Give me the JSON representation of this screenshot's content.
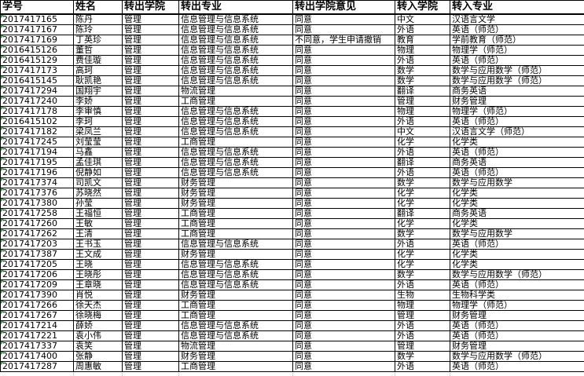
{
  "colors": {
    "transfer_out_header_bg": "#FFD34F",
    "transfer_in_header_bg": "#A5C2E7",
    "grid_border": "#000000",
    "cell_error_indicator_green": "#2E9E41",
    "ghost_gridline": "#d4d4d4"
  },
  "table": {
    "columns": [
      {
        "key": "student-id",
        "label": "学号",
        "group": "plain",
        "width": 93
      },
      {
        "key": "name",
        "label": "姓名",
        "group": "plain",
        "width": 62
      },
      {
        "key": "out-college",
        "label": "转出学院",
        "group": "out",
        "width": 72
      },
      {
        "key": "out-major",
        "label": "转出专业",
        "group": "out",
        "width": 145
      },
      {
        "key": "out-opinion",
        "label": "转出学院意见",
        "group": "out",
        "width": 130
      },
      {
        "key": "in-college",
        "label": "转入学院",
        "group": "in",
        "width": 70
      },
      {
        "key": "in-major",
        "label": "转入专业",
        "group": "in",
        "width": 171
      }
    ],
    "rows": [
      [
        "2017417165",
        "陈丹",
        "管理",
        "信息管理与信息系统",
        "同意",
        "中文",
        "汉语言文学"
      ],
      [
        "2017417167",
        "陈玲",
        "管理",
        "信息管理与信息系统",
        "同意",
        "外语",
        "英语（师范）"
      ],
      [
        "2017417169",
        "丁英珍",
        "管理",
        "信息管理与信息系统",
        "不同意，学生申请撤销",
        "教育",
        "学前教育（师范）"
      ],
      [
        "2016415126",
        "董哲",
        "管理",
        "信息管理与信息系统",
        "同意",
        "物理",
        "物理学（师范）"
      ],
      [
        "2016415129",
        "费佳璇",
        "管理",
        "信息管理与信息系统",
        "同意",
        "外语",
        "英语（师范）"
      ],
      [
        "2017417173",
        "高珂",
        "管理",
        "信息管理与信息系统",
        "同意",
        "数学",
        "数学与应用数学（师范）"
      ],
      [
        "2016415145",
        "耿凯艳",
        "管理",
        "信息管理与信息系统",
        "同意",
        "数学",
        "数学与应用数学（师范）"
      ],
      [
        "2017417294",
        "国翔宇",
        "管理",
        "物流管理",
        "同意",
        "翻译",
        "商务英语"
      ],
      [
        "2017417240",
        "李娇",
        "管理",
        "工商管理",
        "同意",
        "管理",
        "财务管理"
      ],
      [
        "2017417178",
        "李审慎",
        "管理",
        "信息管理与信息系统",
        "同意",
        "物理",
        "物理学（师范）"
      ],
      [
        "2016415102",
        "李珂",
        "管理",
        "信息管理与信息系统",
        "同意",
        "外语",
        "英语（师范）"
      ],
      [
        "2017417182",
        "梁凤兰",
        "管理",
        "信息管理与信息系统",
        "同意",
        "中文",
        "汉语言文学（师范）"
      ],
      [
        "2017417245",
        "刘莹莹",
        "管理",
        "工商管理",
        "同意",
        "化学",
        "化学类"
      ],
      [
        "2017417194",
        "马鑫",
        "管理",
        "信息管理与信息系统",
        "同意",
        "外语",
        "英语（师范）"
      ],
      [
        "2017417195",
        "孟佳琪",
        "管理",
        "信息管理与信息系统",
        "同意",
        "翻译",
        "商务英语"
      ],
      [
        "2017417196",
        "倪静如",
        "管理",
        "信息管理与信息系统",
        "同意",
        "外语",
        "英语（师范）"
      ],
      [
        "2017417374",
        "司凯文",
        "管理",
        "财务管理",
        "同意",
        "数学",
        "数学与应用数学"
      ],
      [
        "2017417376",
        "苏晓然",
        "管理",
        "财务管理",
        "同意",
        "化学",
        "化学类"
      ],
      [
        "2017417380",
        "孙莹",
        "管理",
        "财务管理",
        "同意",
        "化学",
        "化学类"
      ],
      [
        "2017417258",
        "王福恒",
        "管理",
        "工商管理",
        "同意",
        "翻译",
        "商务英语"
      ],
      [
        "2017417260",
        "王敏",
        "管理",
        "工商管理",
        "同意",
        "化学",
        "化学类"
      ],
      [
        "2017417262",
        "王清",
        "管理",
        "工商管理",
        "同意",
        "数学",
        "数学与应用数学"
      ],
      [
        "2017417203",
        "王书玉",
        "管理",
        "信息管理与信息系统",
        "同意",
        "外语",
        "英语（师范）"
      ],
      [
        "2017417387",
        "王文成",
        "管理",
        "财务管理",
        "同意",
        "化学",
        "化学类"
      ],
      [
        "2017417205",
        "王晓",
        "管理",
        "信息管理与信息系统",
        "同意",
        "化学",
        "化学类"
      ],
      [
        "2017417206",
        "王晓彤",
        "管理",
        "信息管理与信息系统",
        "同意",
        "数学",
        "数学与应用数学（师范）"
      ],
      [
        "2017417209",
        "王章晓",
        "管理",
        "信息管理与信息系统",
        "同意",
        "外语",
        "英语（师范）"
      ],
      [
        "2017417390",
        "肖悦",
        "管理",
        "财务管理",
        "同意",
        "生物",
        "生物科学类"
      ],
      [
        "2017417266",
        "徐天杰",
        "管理",
        "工商管理",
        "同意",
        "物理",
        "物理学（师范）"
      ],
      [
        "2017417267",
        "徐晓梅",
        "管理",
        "工商管理",
        "同意",
        "管理",
        "财务管理"
      ],
      [
        "2017417214",
        "薛娇",
        "管理",
        "信息管理与信息系统",
        "同意",
        "外语",
        "英语（师范）"
      ],
      [
        "2017417221",
        "袁小伟",
        "管理",
        "信息管理与信息系统",
        "同意",
        "外语",
        "英语（师范）"
      ],
      [
        "2017417337",
        "袁笑",
        "管理",
        "物流管理",
        "同意",
        "管理",
        "财务管理"
      ],
      [
        "2017417400",
        "张静",
        "管理",
        "财务管理",
        "同意",
        "数学",
        "数学与应用数学（师范）"
      ],
      [
        "2017417287",
        "周惠敏",
        "管理",
        "工商管理",
        "同意",
        "外语",
        "英语（师范）"
      ]
    ]
  }
}
